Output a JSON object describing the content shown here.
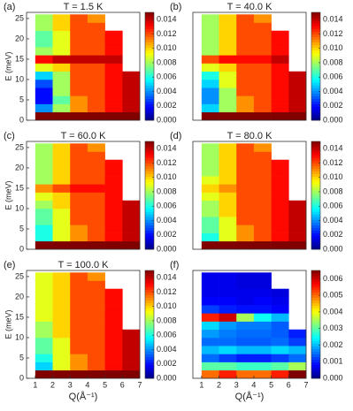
{
  "chart_data": [
    {
      "type": "heatmap",
      "panel_label": "(a)",
      "title": "T = 1.5 K",
      "y_label": "E (meV)",
      "xlim": [
        0.5,
        7
      ],
      "ylim": [
        0,
        26.5
      ],
      "yticks": [
        0,
        5,
        10,
        15,
        20,
        25
      ],
      "x_edges": [
        1,
        2,
        3,
        4,
        5,
        6,
        7
      ],
      "y_edges": [
        0,
        2,
        4,
        6,
        8,
        10,
        12,
        14,
        16,
        18,
        20,
        22,
        24,
        26
      ],
      "clim": [
        0,
        0.015
      ],
      "cticks": [
        {
          "value": 0,
          "label": "0.000"
        },
        {
          "value": 0.002,
          "label": "0.002"
        },
        {
          "value": 0.004,
          "label": "0.004"
        },
        {
          "value": 0.006,
          "label": "0.006"
        },
        {
          "value": 0.008,
          "label": "0.008"
        },
        {
          "value": 0.01,
          "label": "0.010"
        },
        {
          "value": 0.012,
          "label": "0.012"
        },
        {
          "value": 0.014,
          "label": "0.014"
        }
      ],
      "z": [
        [
          0.015,
          0.015,
          0.015,
          0.015,
          0.015,
          0.015
        ],
        [
          0.004,
          0.008,
          0.011,
          0.012,
          0.013,
          0.014
        ],
        [
          0.002,
          0.007,
          0.011,
          0.012,
          0.013,
          0.014
        ],
        [
          0.002,
          0.008,
          0.012,
          0.012,
          0.013,
          0.014
        ],
        [
          0.003,
          0.008,
          0.012,
          0.012,
          0.013,
          0.014
        ],
        [
          0.005,
          0.008,
          0.012,
          0.012,
          0.013,
          0.014
        ],
        [
          0.009,
          0.01,
          0.012,
          0.012,
          0.013,
          null
        ],
        [
          0.013,
          0.014,
          0.014,
          0.014,
          0.014,
          null
        ],
        [
          0.008,
          0.009,
          0.012,
          0.012,
          0.013,
          null
        ],
        [
          0.007,
          0.009,
          0.012,
          0.012,
          0.013,
          null
        ],
        [
          0.007,
          0.009,
          0.012,
          0.012,
          0.013,
          null
        ],
        [
          0.008,
          0.01,
          0.012,
          0.012,
          null,
          null
        ],
        [
          0.008,
          0.01,
          0.012,
          0.011,
          null,
          null
        ]
      ]
    },
    {
      "type": "heatmap",
      "panel_label": "(b)",
      "title": "T = 40.0 K",
      "xlim": [
        0.5,
        7
      ],
      "ylim": [
        0,
        26.5
      ],
      "x_edges": [
        1,
        2,
        3,
        4,
        5,
        6,
        7
      ],
      "y_edges": [
        0,
        2,
        4,
        6,
        8,
        10,
        12,
        14,
        16,
        18,
        20,
        22,
        24,
        26
      ],
      "clim": [
        0,
        0.015
      ],
      "cticks": [
        {
          "value": 0,
          "label": "0.000"
        },
        {
          "value": 0.002,
          "label": "0.002"
        },
        {
          "value": 0.004,
          "label": "0.004"
        },
        {
          "value": 0.006,
          "label": "0.006"
        },
        {
          "value": 0.008,
          "label": "0.008"
        },
        {
          "value": 0.01,
          "label": "0.010"
        },
        {
          "value": 0.012,
          "label": "0.012"
        },
        {
          "value": 0.014,
          "label": "0.014"
        }
      ],
      "z": [
        [
          0.015,
          0.015,
          0.015,
          0.015,
          0.015,
          0.015
        ],
        [
          0.005,
          0.008,
          0.011,
          0.012,
          0.013,
          0.014
        ],
        [
          0.004,
          0.008,
          0.011,
          0.012,
          0.013,
          0.014
        ],
        [
          0.004,
          0.008,
          0.012,
          0.012,
          0.013,
          0.014
        ],
        [
          0.005,
          0.009,
          0.012,
          0.012,
          0.013,
          0.014
        ],
        [
          0.006,
          0.009,
          0.012,
          0.012,
          0.013,
          0.014
        ],
        [
          0.009,
          0.01,
          0.012,
          0.012,
          0.013,
          null
        ],
        [
          0.012,
          0.013,
          0.013,
          0.013,
          0.014,
          null
        ],
        [
          0.008,
          0.01,
          0.012,
          0.012,
          0.013,
          null
        ],
        [
          0.008,
          0.01,
          0.012,
          0.012,
          0.013,
          null
        ],
        [
          0.008,
          0.01,
          0.012,
          0.012,
          0.013,
          null
        ],
        [
          0.008,
          0.01,
          0.012,
          0.012,
          null,
          null
        ],
        [
          0.008,
          0.01,
          0.012,
          0.011,
          null,
          null
        ]
      ]
    },
    {
      "type": "heatmap",
      "panel_label": "(c)",
      "title": "T = 60.0 K",
      "y_label": "E (meV)",
      "xlim": [
        0.5,
        7
      ],
      "ylim": [
        0,
        26.5
      ],
      "yticks": [
        0,
        5,
        10,
        15,
        20,
        25
      ],
      "x_edges": [
        1,
        2,
        3,
        4,
        5,
        6,
        7
      ],
      "y_edges": [
        0,
        2,
        4,
        6,
        8,
        10,
        12,
        14,
        16,
        18,
        20,
        22,
        24,
        26
      ],
      "clim": [
        0,
        0.015
      ],
      "cticks": [
        {
          "value": 0,
          "label": "0.000"
        },
        {
          "value": 0.002,
          "label": "0.002"
        },
        {
          "value": 0.004,
          "label": "0.004"
        },
        {
          "value": 0.006,
          "label": "0.006"
        },
        {
          "value": 0.008,
          "label": "0.008"
        },
        {
          "value": 0.01,
          "label": "0.010"
        },
        {
          "value": 0.012,
          "label": "0.012"
        },
        {
          "value": 0.014,
          "label": "0.014"
        }
      ],
      "z": [
        [
          0.015,
          0.015,
          0.015,
          0.015,
          0.015,
          0.015
        ],
        [
          0.006,
          0.009,
          0.011,
          0.012,
          0.013,
          0.014
        ],
        [
          0.006,
          0.009,
          0.011,
          0.012,
          0.013,
          0.014
        ],
        [
          0.007,
          0.009,
          0.012,
          0.012,
          0.013,
          0.014
        ],
        [
          0.007,
          0.009,
          0.012,
          0.012,
          0.013,
          0.014
        ],
        [
          0.008,
          0.01,
          0.012,
          0.012,
          0.013,
          0.014
        ],
        [
          0.009,
          0.01,
          0.012,
          0.012,
          0.013,
          null
        ],
        [
          0.011,
          0.012,
          0.013,
          0.013,
          0.013,
          null
        ],
        [
          0.008,
          0.01,
          0.012,
          0.012,
          0.013,
          null
        ],
        [
          0.008,
          0.01,
          0.012,
          0.012,
          0.013,
          null
        ],
        [
          0.008,
          0.01,
          0.012,
          0.012,
          0.013,
          null
        ],
        [
          0.008,
          0.01,
          0.012,
          0.012,
          null,
          null
        ],
        [
          0.008,
          0.01,
          0.012,
          0.011,
          null,
          null
        ]
      ]
    },
    {
      "type": "heatmap",
      "panel_label": "(d)",
      "title": "T = 80.0 K",
      "xlim": [
        0.5,
        7
      ],
      "ylim": [
        0,
        26.5
      ],
      "x_edges": [
        1,
        2,
        3,
        4,
        5,
        6,
        7
      ],
      "y_edges": [
        0,
        2,
        4,
        6,
        8,
        10,
        12,
        14,
        16,
        18,
        20,
        22,
        24,
        26
      ],
      "clim": [
        0,
        0.015
      ],
      "cticks": [
        {
          "value": 0,
          "label": "0.000"
        },
        {
          "value": 0.002,
          "label": "0.002"
        },
        {
          "value": 0.004,
          "label": "0.004"
        },
        {
          "value": 0.006,
          "label": "0.006"
        },
        {
          "value": 0.008,
          "label": "0.008"
        },
        {
          "value": 0.01,
          "label": "0.010"
        },
        {
          "value": 0.012,
          "label": "0.012"
        },
        {
          "value": 0.014,
          "label": "0.014"
        }
      ],
      "z": [
        [
          0.015,
          0.015,
          0.015,
          0.015,
          0.015,
          0.015
        ],
        [
          0.006,
          0.009,
          0.011,
          0.012,
          0.013,
          0.014
        ],
        [
          0.007,
          0.009,
          0.011,
          0.012,
          0.013,
          0.014
        ],
        [
          0.007,
          0.009,
          0.012,
          0.012,
          0.013,
          0.014
        ],
        [
          0.008,
          0.01,
          0.012,
          0.012,
          0.013,
          0.014
        ],
        [
          0.008,
          0.01,
          0.012,
          0.012,
          0.013,
          0.014
        ],
        [
          0.009,
          0.01,
          0.012,
          0.012,
          0.013,
          null
        ],
        [
          0.01,
          0.011,
          0.012,
          0.012,
          0.013,
          null
        ],
        [
          0.009,
          0.01,
          0.012,
          0.012,
          0.013,
          null
        ],
        [
          0.008,
          0.01,
          0.012,
          0.012,
          0.013,
          null
        ],
        [
          0.008,
          0.01,
          0.012,
          0.012,
          0.013,
          null
        ],
        [
          0.008,
          0.01,
          0.012,
          0.012,
          null,
          null
        ],
        [
          0.008,
          0.01,
          0.012,
          0.011,
          null,
          null
        ]
      ]
    },
    {
      "type": "heatmap",
      "panel_label": "(e)",
      "title": "T = 100.0 K",
      "y_label": "E (meV)",
      "x_label": "Q(Å⁻¹)",
      "xlim": [
        0.5,
        7
      ],
      "ylim": [
        0,
        26.5
      ],
      "xticks": [
        1,
        2,
        3,
        4,
        5,
        6,
        7
      ],
      "yticks": [
        0,
        5,
        10,
        15,
        20,
        25
      ],
      "x_edges": [
        1,
        2,
        3,
        4,
        5,
        6,
        7
      ],
      "y_edges": [
        0,
        2,
        4,
        6,
        8,
        10,
        12,
        14,
        16,
        18,
        20,
        22,
        24,
        26
      ],
      "clim": [
        0,
        0.015
      ],
      "cticks": [
        {
          "value": 0,
          "label": "0.000"
        },
        {
          "value": 0.002,
          "label": "0.002"
        },
        {
          "value": 0.004,
          "label": "0.004"
        },
        {
          "value": 0.006,
          "label": "0.006"
        },
        {
          "value": 0.008,
          "label": "0.008"
        },
        {
          "value": 0.01,
          "label": "0.010"
        },
        {
          "value": 0.012,
          "label": "0.012"
        },
        {
          "value": 0.014,
          "label": "0.014"
        }
      ],
      "z": [
        [
          0.015,
          0.015,
          0.015,
          0.015,
          0.015,
          0.015
        ],
        [
          0.005,
          0.009,
          0.011,
          0.012,
          0.013,
          0.014
        ],
        [
          0.006,
          0.009,
          0.011,
          0.012,
          0.013,
          0.014
        ],
        [
          0.007,
          0.009,
          0.012,
          0.012,
          0.013,
          0.014
        ],
        [
          0.007,
          0.009,
          0.012,
          0.012,
          0.013,
          0.014
        ],
        [
          0.008,
          0.01,
          0.012,
          0.012,
          0.013,
          0.014
        ],
        [
          0.008,
          0.01,
          0.012,
          0.012,
          0.013,
          null
        ],
        [
          0.009,
          0.01,
          0.012,
          0.012,
          0.013,
          null
        ],
        [
          0.009,
          0.01,
          0.012,
          0.012,
          0.013,
          null
        ],
        [
          0.009,
          0.01,
          0.012,
          0.012,
          0.013,
          null
        ],
        [
          0.009,
          0.01,
          0.012,
          0.012,
          0.013,
          null
        ],
        [
          0.009,
          0.01,
          0.012,
          0.012,
          null,
          null
        ],
        [
          0.009,
          0.01,
          0.012,
          0.011,
          null,
          null
        ]
      ]
    },
    {
      "type": "heatmap",
      "panel_label": "(f)",
      "x_label": "Q(Å⁻¹)",
      "xlim": [
        0.5,
        7
      ],
      "ylim": [
        0,
        26.5
      ],
      "xticks": [
        1,
        2,
        3,
        4,
        5,
        6,
        7
      ],
      "x_edges": [
        1,
        2,
        3,
        4,
        5,
        6,
        7
      ],
      "y_edges": [
        0,
        2,
        4,
        6,
        8,
        10,
        12,
        14,
        16,
        18,
        20,
        22,
        24,
        26
      ],
      "clim": [
        0,
        0.0065
      ],
      "cticks": [
        {
          "value": 0,
          "label": "0.000"
        },
        {
          "value": 0.001,
          "label": "0.001"
        },
        {
          "value": 0.002,
          "label": "0.002"
        },
        {
          "value": 0.003,
          "label": "0.003"
        },
        {
          "value": 0.004,
          "label": "0.004"
        },
        {
          "value": 0.005,
          "label": "0.005"
        },
        {
          "value": 0.006,
          "label": "0.006"
        }
      ],
      "z": [
        [
          0.005,
          0.0055,
          0.005,
          0.005,
          0.0055,
          0.0065
        ],
        [
          0.003,
          0.003,
          0.0028,
          0.0028,
          0.003,
          0.0035
        ],
        [
          0.0015,
          0.0012,
          0.001,
          0.001,
          0.0012,
          0.0015
        ],
        [
          0.002,
          0.0022,
          0.002,
          0.002,
          0.0022,
          0.002
        ],
        [
          0.0015,
          0.0015,
          0.0014,
          0.0014,
          0.0015,
          0.0012
        ],
        [
          0.0018,
          0.0016,
          0.0015,
          0.0015,
          0.0014,
          0.001
        ],
        [
          0.0022,
          0.0018,
          0.0016,
          0.0016,
          0.0014,
          null
        ],
        [
          0.0055,
          0.006,
          0.0035,
          0.0025,
          0.002,
          null
        ],
        [
          0.0012,
          0.001,
          0.0009,
          0.0009,
          0.0008,
          null
        ],
        [
          0.0008,
          0.0008,
          0.0007,
          0.0008,
          0.0007,
          null
        ],
        [
          0.0007,
          0.0007,
          0.0007,
          0.0007,
          0.0006,
          null
        ],
        [
          0.0007,
          0.0007,
          0.0006,
          0.0006,
          null,
          null
        ],
        [
          0.0007,
          0.0007,
          0.0006,
          0.0006,
          null,
          null
        ]
      ]
    }
  ]
}
